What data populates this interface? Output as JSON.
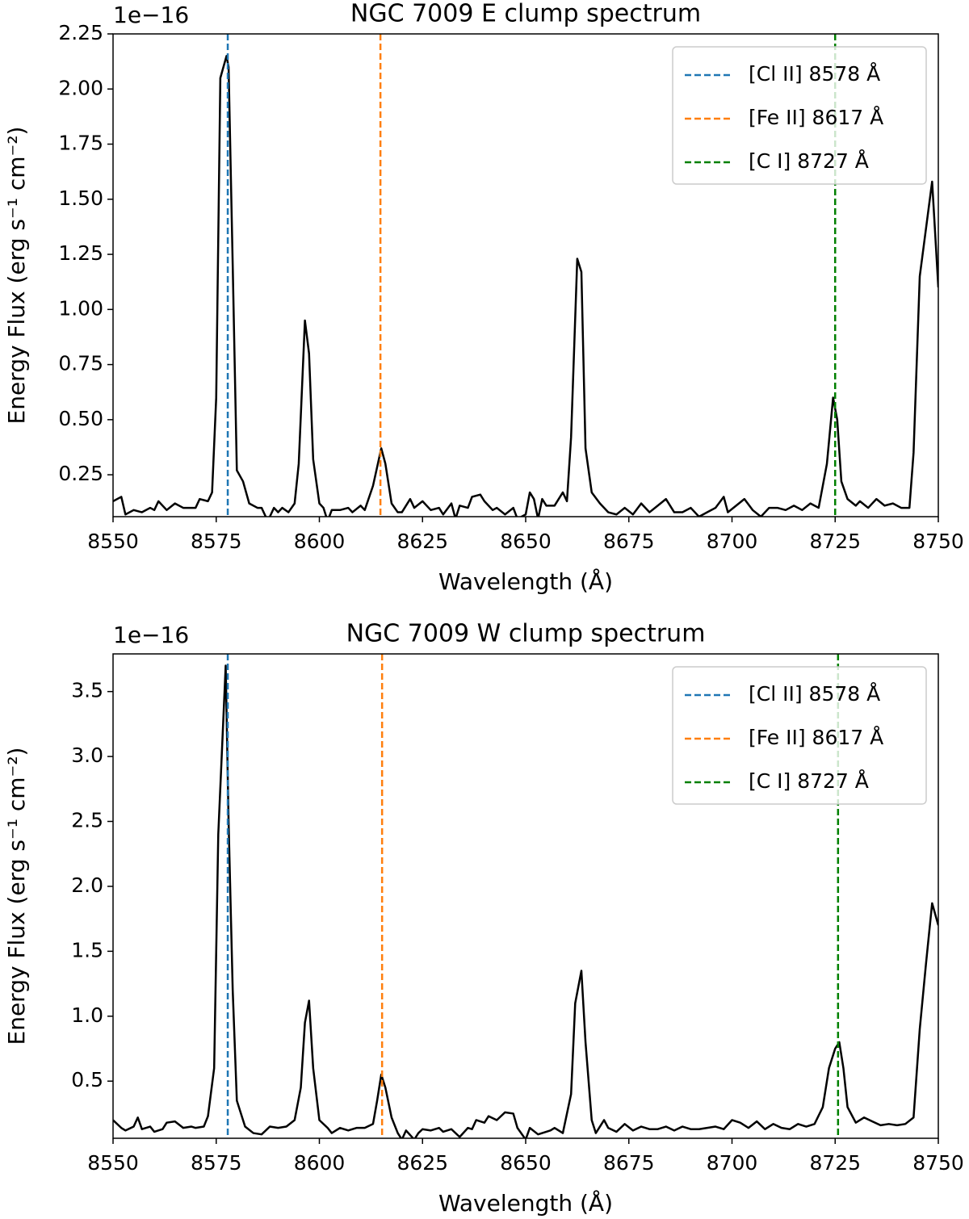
{
  "chart_data": [
    {
      "type": "line",
      "title": "NGC 7009 E clump spectrum",
      "offset_label": "1e−16",
      "xlabel": "Wavelength (Å)",
      "ylabel": "Energy Flux (erg s⁻¹ cm⁻²)",
      "xlim": [
        8550,
        8750
      ],
      "ylim": [
        0.06,
        2.25
      ],
      "xticks": [
        8550,
        8575,
        8600,
        8625,
        8650,
        8675,
        8700,
        8725,
        8750
      ],
      "yticks": [
        0.25,
        {
          "value": 0.5,
          "label": "0.50"
        },
        0.75,
        {
          "value": 1.0,
          "label": "1.00"
        },
        1.25,
        {
          "value": 1.5,
          "label": "1.50"
        },
        1.75,
        {
          "value": 2.0,
          "label": "2.00"
        },
        2.25
      ],
      "legend": "upper right",
      "series": [
        {
          "color": "#000000",
          "x": [
            8550,
            8552,
            8553,
            8555,
            8557,
            8559,
            8560,
            8561,
            8563,
            8565,
            8567,
            8570,
            8571,
            8573,
            8574,
            8575,
            8576,
            8577.5,
            8578,
            8579,
            8580,
            8581.5,
            8583,
            8585,
            8586,
            8587.5,
            8589,
            8590,
            8591,
            8592.5,
            8594,
            8595,
            8596.5,
            8597.5,
            8598.5,
            8600,
            8601,
            8602,
            8603,
            8605,
            8607,
            8608,
            8610,
            8611,
            8613,
            8615,
            8616,
            8617.5,
            8619,
            8620,
            8622,
            8623,
            8625,
            8627,
            8629,
            8630,
            8632,
            8633,
            8634,
            8636,
            8637,
            8639,
            8640,
            8642,
            8643,
            8645,
            8647,
            8648,
            8650,
            8651,
            8652,
            8653,
            8654,
            8655,
            8657,
            8659,
            8660,
            8661,
            8662.5,
            8663.5,
            8664.5,
            8666,
            8668,
            8670,
            8672,
            8674,
            8676,
            8678,
            8680,
            8682,
            8684,
            8686,
            8688,
            8690,
            8692,
            8694,
            8696,
            8698,
            8699,
            8701,
            8703,
            8705,
            8707,
            8709,
            8711,
            8713,
            8715,
            8717,
            8719,
            8721,
            8723,
            8724.5,
            8725.5,
            8726.5,
            8728,
            8730,
            8731,
            8733,
            8735,
            8737,
            8739,
            8741,
            8743,
            8744,
            8745.5,
            8748.5,
            8750
          ],
          "values": [
            0.13,
            0.15,
            0.07,
            0.09,
            0.08,
            0.1,
            0.09,
            0.13,
            0.09,
            0.12,
            0.1,
            0.1,
            0.14,
            0.13,
            0.17,
            0.6,
            2.05,
            2.15,
            2.1,
            1.2,
            0.27,
            0.22,
            0.12,
            0.1,
            0.1,
            0.04,
            0.1,
            0.08,
            0.1,
            0.08,
            0.12,
            0.3,
            0.95,
            0.8,
            0.32,
            0.12,
            0.1,
            0.04,
            0.09,
            0.09,
            0.1,
            0.08,
            0.11,
            0.09,
            0.2,
            0.37,
            0.3,
            0.12,
            0.08,
            0.08,
            0.14,
            0.1,
            0.13,
            0.09,
            0.1,
            0.07,
            0.12,
            0.05,
            0.11,
            0.1,
            0.15,
            0.16,
            0.13,
            0.09,
            0.1,
            0.07,
            0.1,
            0.05,
            0.07,
            0.17,
            0.14,
            0.05,
            0.14,
            0.11,
            0.11,
            0.17,
            0.13,
            0.42,
            1.23,
            1.17,
            0.37,
            0.17,
            0.12,
            0.08,
            0.07,
            0.1,
            0.07,
            0.12,
            0.08,
            0.11,
            0.14,
            0.08,
            0.08,
            0.1,
            0.06,
            0.08,
            0.1,
            0.15,
            0.08,
            0.11,
            0.14,
            0.09,
            0.06,
            0.1,
            0.1,
            0.09,
            0.11,
            0.09,
            0.12,
            0.1,
            0.3,
            0.6,
            0.5,
            0.22,
            0.14,
            0.11,
            0.13,
            0.1,
            0.14,
            0.11,
            0.12,
            0.1,
            0.1,
            0.35,
            1.15,
            1.58,
            1.1
          ]
        }
      ],
      "vlines": [
        {
          "name": "[Cl II] 8578 Å",
          "color": "#1f77b4",
          "x": 8577.8
        },
        {
          "name": "[Fe II] 8617 Å",
          "color": "#ff7f0e",
          "x": 8614.8
        },
        {
          "name": "[C I] 8727 Å",
          "color": "#008000",
          "x": 8725
        }
      ]
    },
    {
      "type": "line",
      "title": "NGC 7009 W clump spectrum",
      "offset_label": "1e−16",
      "xlabel": "Wavelength (Å)",
      "ylabel": "Energy Flux (erg s⁻¹ cm⁻²)",
      "xlim": [
        8550,
        8750
      ],
      "ylim": [
        0.06,
        3.79
      ],
      "xticks": [
        8550,
        8575,
        8600,
        8625,
        8650,
        8675,
        8700,
        8725,
        8750
      ],
      "yticks": [
        0.5,
        {
          "value": 1.0,
          "label": "1.0"
        },
        1.5,
        {
          "value": 2.0,
          "label": "2.0"
        },
        2.5,
        {
          "value": 3.0,
          "label": "3.0"
        },
        3.5
      ],
      "legend": "upper right",
      "series": [
        {
          "color": "#000000",
          "x": [
            8550,
            8552,
            8553,
            8555,
            8556,
            8557,
            8559,
            8560,
            8562,
            8563,
            8565,
            8567,
            8569,
            8570,
            8572,
            8573,
            8574.5,
            8575.5,
            8577.3,
            8578,
            8579,
            8580,
            8582,
            8584,
            8586,
            8588,
            8590,
            8592,
            8594,
            8595.5,
            8596.5,
            8597.5,
            8598.5,
            8600,
            8602,
            8603,
            8605,
            8607,
            8609,
            8611,
            8613,
            8614,
            8615,
            8616,
            8617.5,
            8619,
            8620,
            8621,
            8623,
            8624,
            8625,
            8627,
            8629,
            8630,
            8632,
            8634,
            8636,
            8637,
            8638,
            8640,
            8641,
            8643,
            8645,
            8647,
            8648,
            8650,
            8651,
            8653,
            8654,
            8656,
            8657,
            8659,
            8661,
            8662,
            8663.5,
            8664.5,
            8666,
            8667,
            8669,
            8670,
            8672,
            8674,
            8676,
            8678,
            8680,
            8682,
            8684,
            8686,
            8688,
            8690,
            8692,
            8694,
            8696,
            8698,
            8700,
            8702,
            8704,
            8706,
            8708,
            8710,
            8712,
            8714,
            8716,
            8718,
            8720,
            8722,
            8723.5,
            8725,
            8726,
            8727,
            8728,
            8730,
            8732,
            8734,
            8736,
            8738,
            8740,
            8742,
            8744,
            8745.5,
            8747,
            8748.5,
            8750
          ],
          "values": [
            0.2,
            0.14,
            0.12,
            0.15,
            0.22,
            0.13,
            0.15,
            0.11,
            0.13,
            0.18,
            0.19,
            0.14,
            0.15,
            0.14,
            0.15,
            0.23,
            0.6,
            2.4,
            3.7,
            2.5,
            1.2,
            0.35,
            0.15,
            0.1,
            0.09,
            0.15,
            0.14,
            0.15,
            0.2,
            0.45,
            0.95,
            1.12,
            0.6,
            0.2,
            0.14,
            0.1,
            0.14,
            0.12,
            0.14,
            0.14,
            0.17,
            0.35,
            0.55,
            0.45,
            0.22,
            0.1,
            0.05,
            0.12,
            0.05,
            0.1,
            0.13,
            0.12,
            0.14,
            0.11,
            0.13,
            0.07,
            0.14,
            0.13,
            0.2,
            0.18,
            0.23,
            0.2,
            0.26,
            0.25,
            0.14,
            0.05,
            0.14,
            0.09,
            0.1,
            0.12,
            0.14,
            0.1,
            0.4,
            1.1,
            1.35,
            0.8,
            0.2,
            0.1,
            0.2,
            0.14,
            0.11,
            0.17,
            0.12,
            0.15,
            0.13,
            0.13,
            0.15,
            0.12,
            0.15,
            0.13,
            0.13,
            0.14,
            0.15,
            0.13,
            0.2,
            0.18,
            0.14,
            0.19,
            0.13,
            0.17,
            0.14,
            0.13,
            0.17,
            0.15,
            0.17,
            0.3,
            0.6,
            0.75,
            0.8,
            0.6,
            0.3,
            0.18,
            0.22,
            0.19,
            0.16,
            0.17,
            0.16,
            0.17,
            0.22,
            0.9,
            1.4,
            1.87,
            1.7
          ]
        }
      ],
      "vlines": [
        {
          "name": "[Cl II] 8578 Å",
          "color": "#1f77b4",
          "x": 8577.8
        },
        {
          "name": "[Fe II] 8617 Å",
          "color": "#ff7f0e",
          "x": 8615.2
        },
        {
          "name": "[C I] 8727 Å",
          "color": "#008000",
          "x": 8725.7
        }
      ]
    }
  ]
}
